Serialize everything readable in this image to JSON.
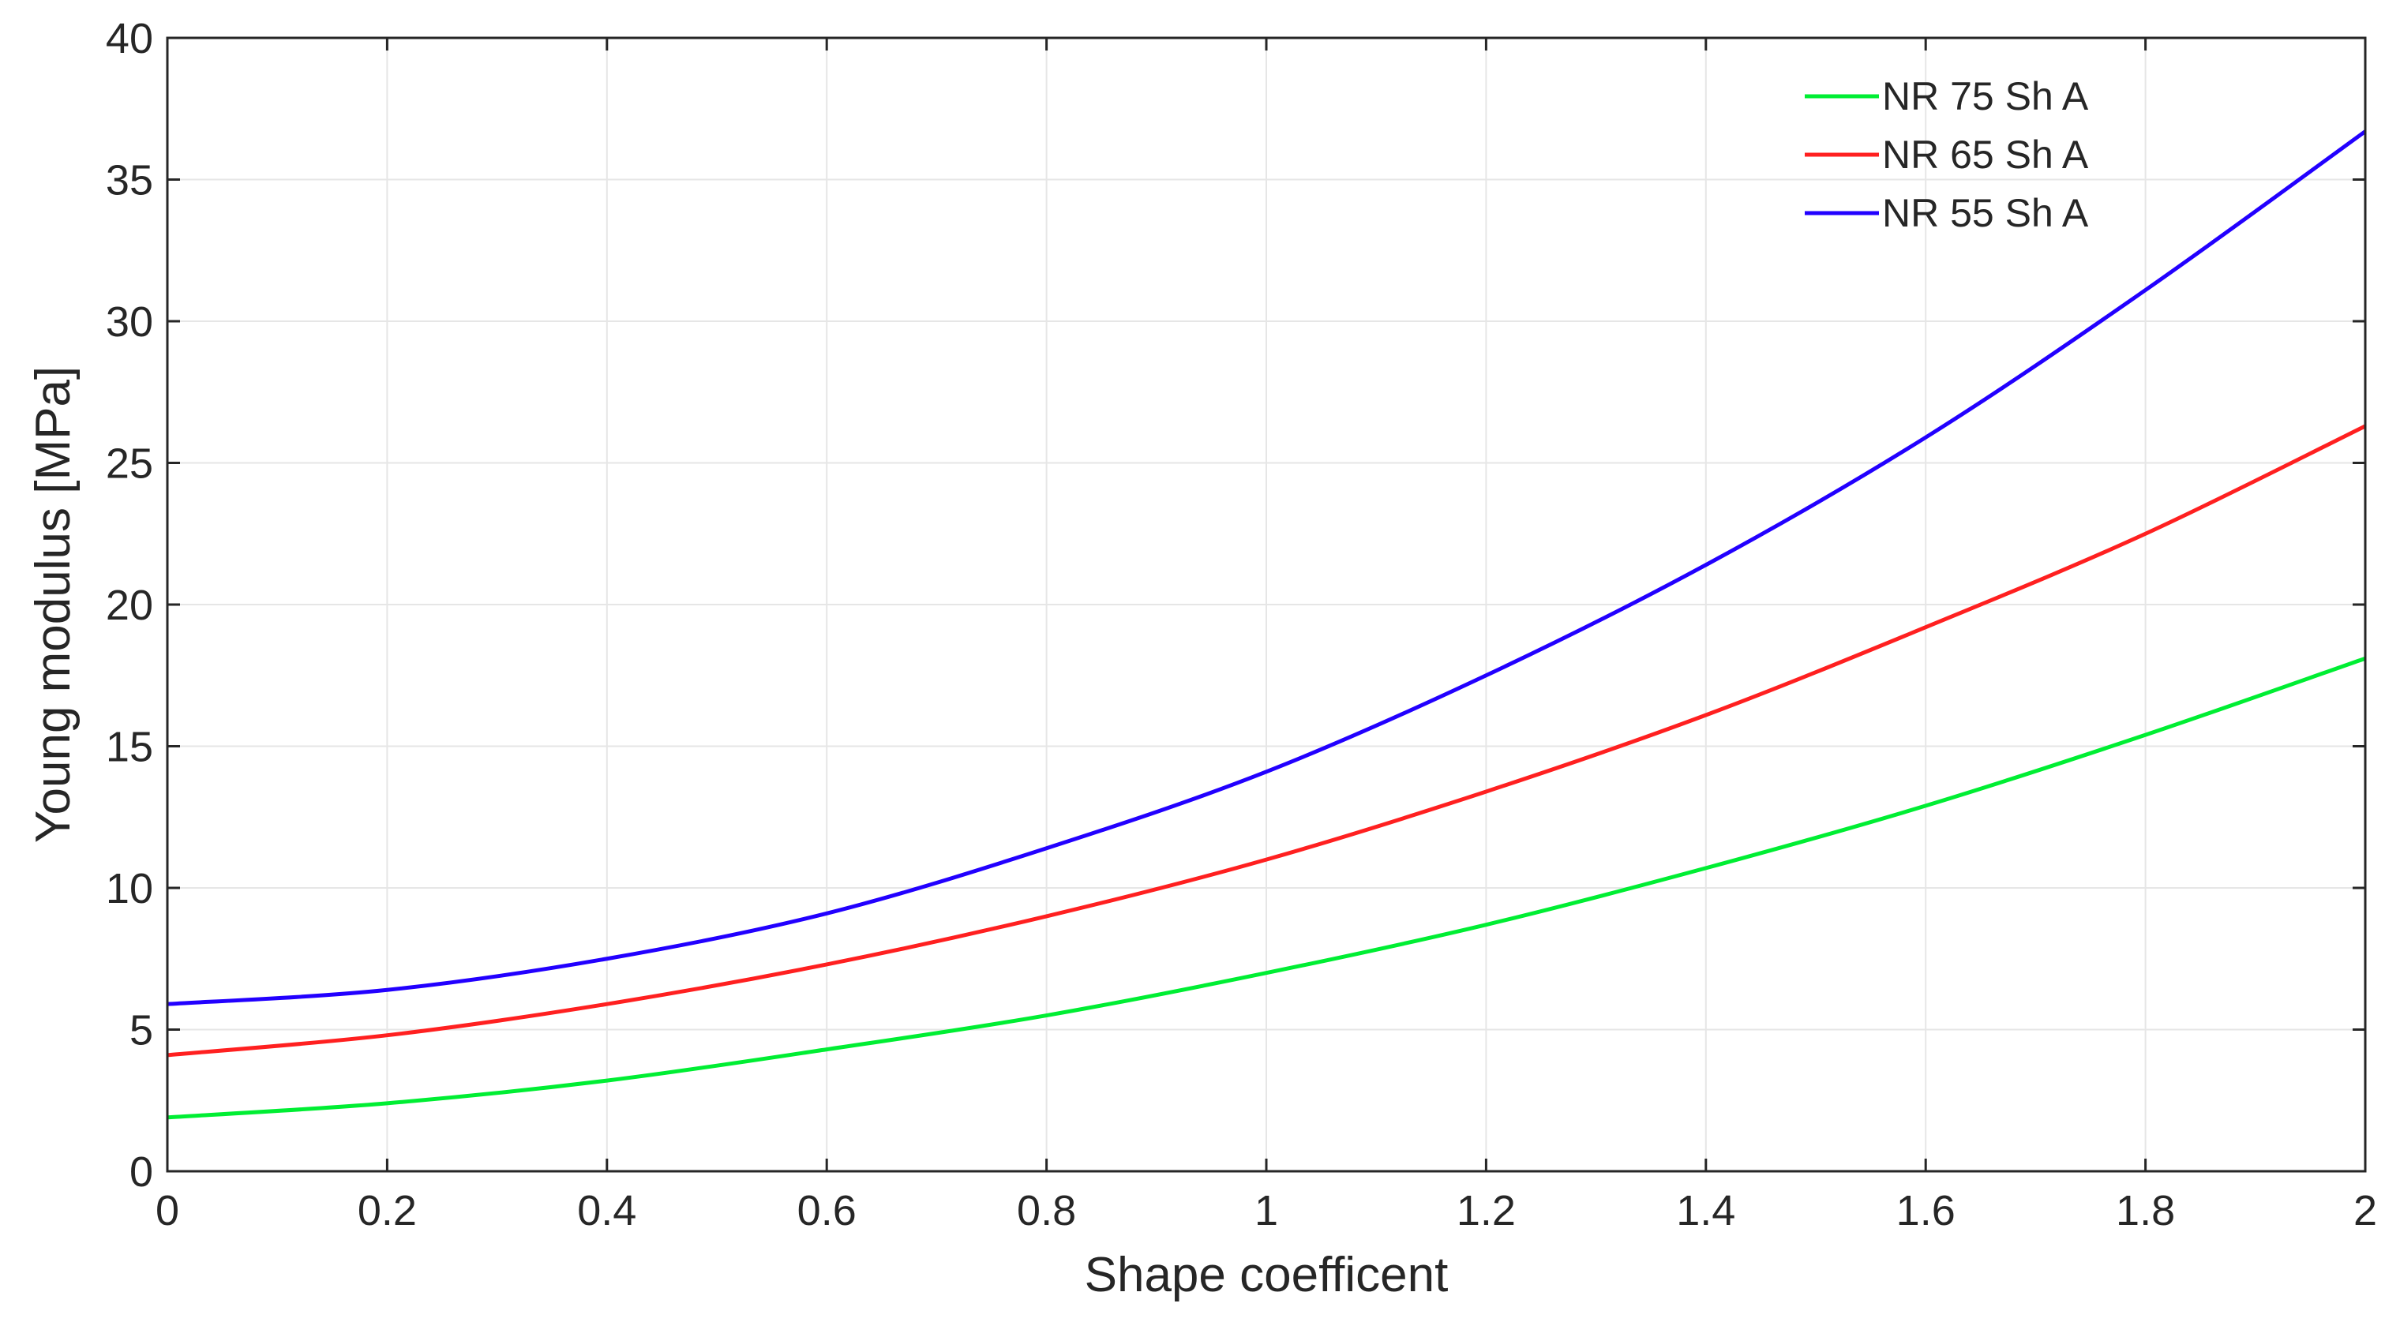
{
  "chart_data": {
    "type": "line",
    "title": "",
    "xlabel": "Shape coefficent",
    "ylabel": "Young modulus [MPa]",
    "xlim": [
      0,
      2
    ],
    "ylim": [
      0,
      40
    ],
    "grid": true,
    "legend_position": "top-right",
    "xticks": [
      "0",
      "0.2",
      "0.4",
      "0.6",
      "0.8",
      "1",
      "1.2",
      "1.4",
      "1.6",
      "1.8",
      "2"
    ],
    "yticks": [
      "0",
      "5",
      "10",
      "15",
      "20",
      "25",
      "30",
      "35",
      "40"
    ],
    "x": [
      0,
      0.2,
      0.4,
      0.6,
      0.8,
      1.0,
      1.2,
      1.4,
      1.6,
      1.8,
      2.0
    ],
    "series": [
      {
        "name": "NR 75 Sh A",
        "color": "#00ee33",
        "values": [
          1.9,
          2.4,
          3.2,
          4.3,
          5.5,
          7.0,
          8.7,
          10.7,
          12.9,
          15.4,
          18.1
        ]
      },
      {
        "name": "NR 65 Sh A",
        "color": "#ff2020",
        "values": [
          4.1,
          4.8,
          5.9,
          7.3,
          9.0,
          11.0,
          13.4,
          16.1,
          19.2,
          22.5,
          26.3
        ]
      },
      {
        "name": "NR 55 Sh A",
        "color": "#2200ff",
        "values": [
          5.9,
          6.4,
          7.5,
          9.1,
          11.4,
          14.1,
          17.5,
          21.4,
          25.9,
          31.1,
          36.7
        ]
      }
    ]
  }
}
